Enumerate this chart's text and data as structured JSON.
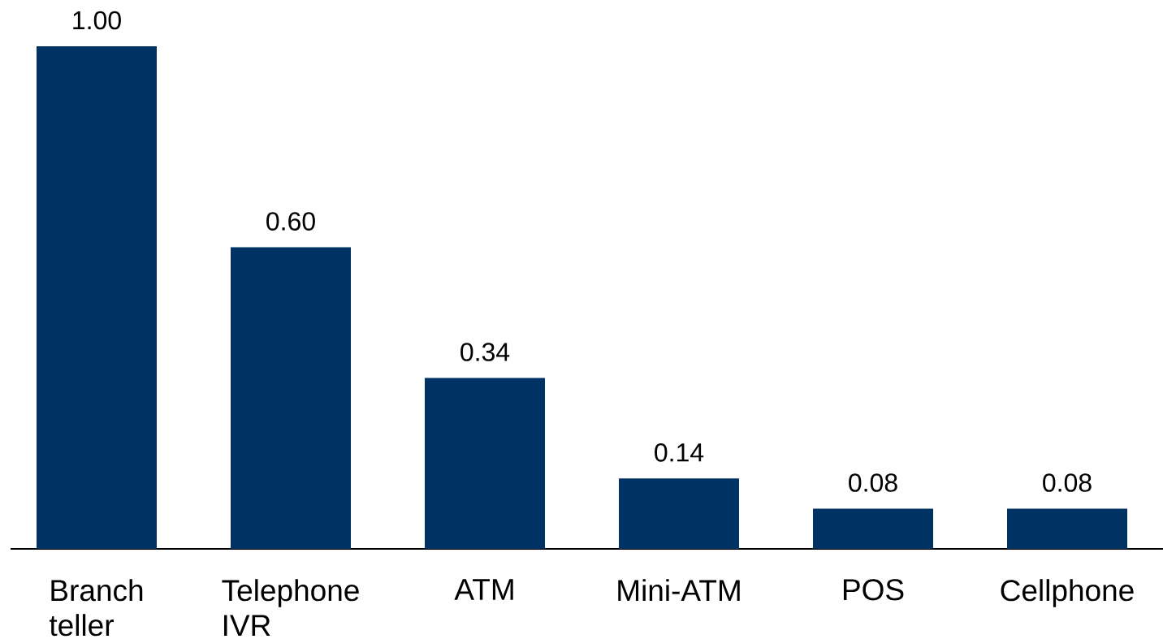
{
  "chart_data": {
    "type": "bar",
    "categories": [
      "Branch teller",
      "Telephone IVR",
      "ATM",
      "Mini-ATM",
      "POS",
      "Cellphone"
    ],
    "values": [
      1.0,
      0.6,
      0.34,
      0.14,
      0.08,
      0.08
    ],
    "value_labels": [
      "1.00",
      "0.60",
      "0.34",
      "0.14",
      "0.08",
      "0.08"
    ],
    "color": "#003264"
  }
}
